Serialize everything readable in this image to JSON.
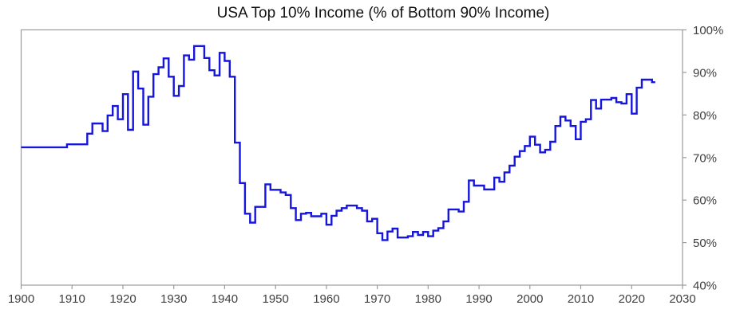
{
  "title": "USA Top 10% Income (% of Bottom 90% Income)",
  "colors": {
    "line": "#1515db",
    "axis": "#9b9b9b",
    "tick_label": "#404040",
    "title": "#111111",
    "background": "#ffffff"
  },
  "chart_data": {
    "type": "line",
    "step": "after",
    "title": "USA Top 10% Income (% of Bottom 90% Income)",
    "xlabel": "",
    "ylabel": "",
    "xlim": [
      1900,
      2030
    ],
    "ylim": [
      40,
      100
    ],
    "grid": false,
    "legend": "none",
    "y_axis_side": "right",
    "y_tick_format": "percent",
    "x_ticks": [
      1900,
      1910,
      1920,
      1930,
      1940,
      1950,
      1960,
      1970,
      1980,
      1990,
      2000,
      2010,
      2020,
      2030
    ],
    "y_ticks": [
      {
        "value": 100,
        "label": "100%"
      },
      {
        "value": 90,
        "label": "90%"
      },
      {
        "value": 80,
        "label": "80%"
      },
      {
        "value": 70,
        "label": "70%"
      },
      {
        "value": 60,
        "label": "60%"
      },
      {
        "value": 50,
        "label": "50%"
      },
      {
        "value": 40,
        "label": "40%"
      }
    ],
    "series_name": "Top 10% income as % of bottom 90% income",
    "years": [
      1900,
      1901,
      1902,
      1903,
      1904,
      1905,
      1906,
      1907,
      1908,
      1909,
      1910,
      1911,
      1912,
      1913,
      1914,
      1915,
      1916,
      1917,
      1918,
      1919,
      1920,
      1921,
      1922,
      1923,
      1924,
      1925,
      1926,
      1927,
      1928,
      1929,
      1930,
      1931,
      1932,
      1933,
      1934,
      1935,
      1936,
      1937,
      1938,
      1939,
      1940,
      1941,
      1942,
      1943,
      1944,
      1945,
      1946,
      1947,
      1948,
      1949,
      1950,
      1951,
      1952,
      1953,
      1954,
      1955,
      1956,
      1957,
      1958,
      1959,
      1960,
      1961,
      1962,
      1963,
      1964,
      1965,
      1966,
      1967,
      1968,
      1969,
      1970,
      1971,
      1972,
      1973,
      1974,
      1975,
      1976,
      1977,
      1978,
      1979,
      1980,
      1981,
      1982,
      1983,
      1984,
      1985,
      1986,
      1987,
      1988,
      1989,
      1990,
      1991,
      1992,
      1993,
      1994,
      1995,
      1996,
      1997,
      1998,
      1999,
      2000,
      2001,
      2002,
      2003,
      2004,
      2005,
      2006,
      2007,
      2008,
      2009,
      2010,
      2011,
      2012,
      2013,
      2014,
      2015,
      2016,
      2017,
      2018,
      2019,
      2020,
      2021,
      2022,
      2023,
      2024
    ],
    "values": [
      72.4,
      72.4,
      72.4,
      72.4,
      72.4,
      72.4,
      72.4,
      72.4,
      72.4,
      73.1,
      73.1,
      73.1,
      73.1,
      75.6,
      78.0,
      78.0,
      76.2,
      79.9,
      82.1,
      79.0,
      84.9,
      76.5,
      90.2,
      86.2,
      77.7,
      84.3,
      89.6,
      91.2,
      93.3,
      89.0,
      84.5,
      86.8,
      94.0,
      93.0,
      96.2,
      96.2,
      93.4,
      90.5,
      89.3,
      94.6,
      92.7,
      89.0,
      73.5,
      64.0,
      56.8,
      54.7,
      58.4,
      58.4,
      63.7,
      62.4,
      62.4,
      61.8,
      61.2,
      58.1,
      55.3,
      56.8,
      57.0,
      56.2,
      56.2,
      56.8,
      54.2,
      56.3,
      57.5,
      58.1,
      58.7,
      58.7,
      58.1,
      57.5,
      55.0,
      55.6,
      52.2,
      50.6,
      52.6,
      53.3,
      51.2,
      51.2,
      51.5,
      52.5,
      51.8,
      52.5,
      51.5,
      52.8,
      53.4,
      55.0,
      57.8,
      57.8,
      57.3,
      59.6,
      64.6,
      63.4,
      63.4,
      62.5,
      62.5,
      65.3,
      64.3,
      66.5,
      68.1,
      70.2,
      71.5,
      72.7,
      74.9,
      73.0,
      71.2,
      71.8,
      73.7,
      77.4,
      79.6,
      78.7,
      77.4,
      74.3,
      78.4,
      79.0,
      83.5,
      81.5,
      83.6,
      83.6,
      84.0,
      83.0,
      82.7,
      84.9,
      80.3,
      86.4,
      88.3,
      88.3,
      87.7
    ]
  }
}
